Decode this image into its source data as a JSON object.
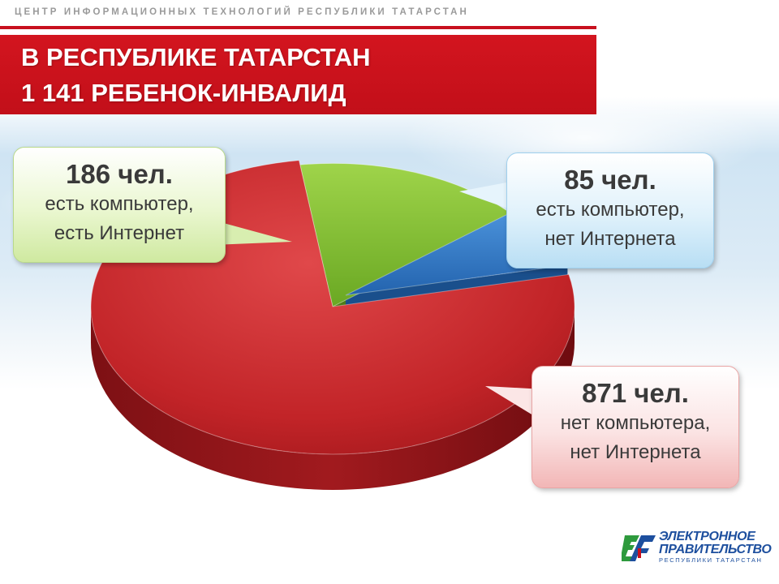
{
  "header": {
    "org": "ЦЕНТР ИНФОРМАЦИОННЫХ ТЕХНОЛОГИЙ РЕСПУБЛИКИ ТАТАРСТАН",
    "title_line1": "В РЕСПУБЛИКЕ ТАТАРСТАН",
    "title_line2": "1 141 РЕБЕНОК-ИНВАЛИД"
  },
  "chart_data": {
    "type": "pie",
    "title": "",
    "categories": [
      "есть компьютер, есть Интернет",
      "есть компьютер, нет Интернета",
      "нет компьютера, нет Интернета"
    ],
    "values": [
      186,
      85,
      871
    ],
    "colors": [
      "#7dbf2e",
      "#2f78c8",
      "#c8272b"
    ]
  },
  "callouts": [
    {
      "value": "186 чел.",
      "line1": "есть компьютер,",
      "line2": "есть Интернет"
    },
    {
      "value": "85 чел.",
      "line1": "есть компьютер,",
      "line2": "нет Интернета"
    },
    {
      "value": "871 чел.",
      "line1": "нет компьютера,",
      "line2": "нет Интернета"
    }
  ],
  "logo": {
    "line1": "ЭЛЕКТРОННОЕ",
    "line2": "ПРАВИТЕЛЬСТВО",
    "line3": "РЕСПУБЛИКИ ТАТАРСТАН"
  }
}
